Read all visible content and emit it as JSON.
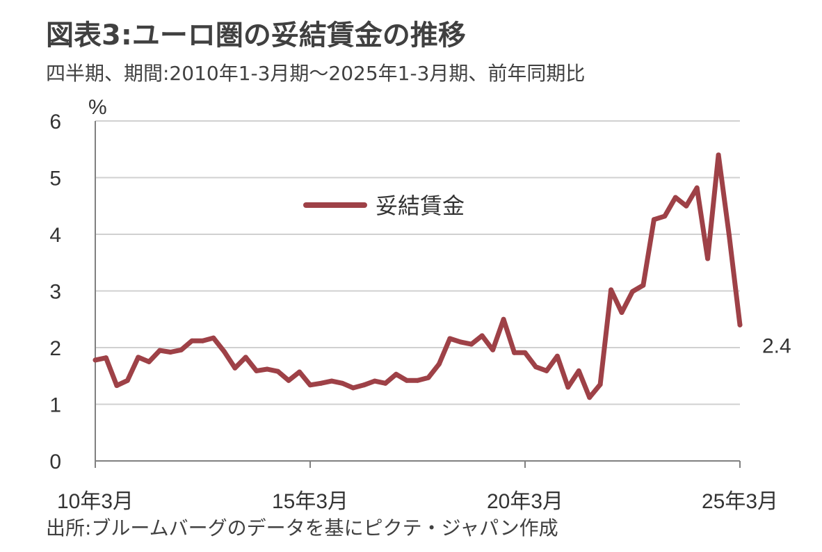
{
  "title": "図表3:ユーロ圏の妥結賃金の推移",
  "subtitle": "四半期、期間:2010年1-3月期〜2025年1-3月期、前年同期比",
  "source": "出所:ブルームバーグのデータを基にピクテ・ジャパン作成",
  "chart_data": {
    "type": "line",
    "title": "図表3:ユーロ圏の妥結賃金の推移",
    "subtitle": "四半期、期間:2010年1-3月期〜2025年1-3月期、前年同期比",
    "y_unit": "%",
    "ylim": [
      0,
      6
    ],
    "yticks": [
      0,
      1,
      2,
      3,
      4,
      5,
      6
    ],
    "grid": true,
    "legend_position": "top-center",
    "x_tick_labels": [
      "10年3月",
      "15年3月",
      "20年3月",
      "25年3月"
    ],
    "x_tick_index": [
      0,
      20,
      40,
      60
    ],
    "x_range": [
      0,
      60
    ],
    "series": [
      {
        "name": "妥結賃金",
        "color": "#9E4147",
        "values": [
          1.78,
          1.82,
          1.33,
          1.42,
          1.83,
          1.75,
          1.95,
          1.92,
          1.96,
          2.12,
          2.12,
          2.17,
          1.93,
          1.64,
          1.83,
          1.59,
          1.62,
          1.58,
          1.42,
          1.57,
          1.34,
          1.37,
          1.41,
          1.37,
          1.29,
          1.34,
          1.41,
          1.37,
          1.53,
          1.42,
          1.42,
          1.47,
          1.71,
          2.16,
          2.1,
          2.06,
          2.21,
          1.96,
          2.5,
          1.91,
          1.91,
          1.66,
          1.59,
          1.85,
          1.3,
          1.59,
          1.12,
          1.35,
          3.02,
          2.62,
          2.99,
          3.1,
          4.26,
          4.32,
          4.65,
          4.5,
          4.82,
          3.57,
          5.4,
          3.98,
          2.4
        ]
      }
    ],
    "annotations": [
      {
        "text": "2.4"
      }
    ]
  }
}
